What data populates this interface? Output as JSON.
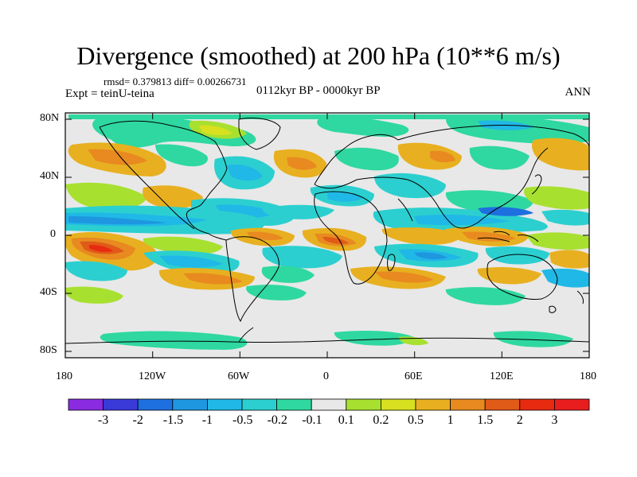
{
  "title": "Divergence (smoothed) at 200 hPa (10**6 m/s)",
  "stats_text": "rmsd= 0.379813 diff= 0.00266731",
  "experiment_text": "Expt = teinU-teina",
  "period_text": "0112kyr BP - 0000kyr BP",
  "season": "ANN",
  "lat_labels": [
    "80N",
    "40N",
    "0",
    "40S",
    "80S"
  ],
  "lon_labels": [
    "180",
    "120W",
    "60W",
    "0",
    "60E",
    "120E",
    "180"
  ],
  "colorbar": {
    "labels": [
      "-3",
      "-2",
      "-1.5",
      "-1",
      "-0.5",
      "-0.2",
      "-0.1",
      "0.1",
      "0.2",
      "0.5",
      "1",
      "1.5",
      "2",
      "3"
    ],
    "colors": [
      "#8a2be2",
      "#3a3ad8",
      "#1e6fe0",
      "#1e96e0",
      "#20b8e6",
      "#2ccfcf",
      "#2fd8a0",
      "#e8e8e8",
      "#a8e030",
      "#d8e020",
      "#e8b020",
      "#e88a20",
      "#e05a18",
      "#e82a10",
      "#e81e1e"
    ]
  },
  "chart_data": {
    "type": "map-contour",
    "variable": "Divergence (smoothed) at 200 hPa",
    "units": "10**6 m/s",
    "rmsd": 0.379813,
    "diff": 0.00266731,
    "lat_range": [
      -90,
      90
    ],
    "lon_range": [
      -180,
      180
    ],
    "levels": [
      -3,
      -2,
      -1.5,
      -1,
      -0.5,
      -0.2,
      -0.1,
      0.1,
      0.2,
      0.5,
      1,
      1.5,
      2,
      3
    ]
  }
}
